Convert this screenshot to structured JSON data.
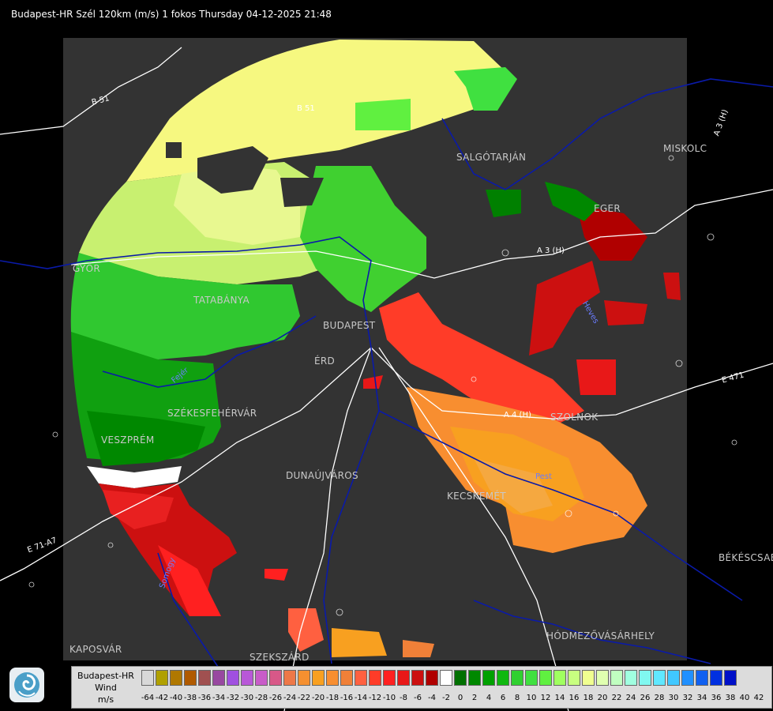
{
  "title": "Budapest-HR Szél 120km (m/s) 1 fokos Thursday 04-12-2025 21:48",
  "cities": [
    {
      "name": "SALGÓTARJÁN",
      "id": "salgotarjan"
    },
    {
      "name": "MISKOLC",
      "id": "miskolc"
    },
    {
      "name": "EGER",
      "id": "eger"
    },
    {
      "name": "TATABÁNYA",
      "id": "tatabanya"
    },
    {
      "name": "BUDAPEST",
      "id": "budapest"
    },
    {
      "name": "ÉRD",
      "id": "erd"
    },
    {
      "name": "SZÉKESFEHÉRVÁR",
      "id": "szekesfehervar"
    },
    {
      "name": "VESZPRÉM",
      "id": "veszprem"
    },
    {
      "name": "DUNAÚJVÁROS",
      "id": "dunaujvaros"
    },
    {
      "name": "KECSKEMÉT",
      "id": "kecskemet"
    },
    {
      "name": "SZOLNOK",
      "id": "szolnok"
    },
    {
      "name": "BÉKÉSCSABA",
      "id": "bekescsaba"
    },
    {
      "name": "HÓDMEZŐVÁSÁRHELY",
      "id": "hodmezovasarhely"
    },
    {
      "name": "KAPOSVÁR",
      "id": "kaposvar"
    },
    {
      "name": "SZEKSZÁRD",
      "id": "szekszard"
    },
    {
      "name": "GYŐR",
      "id": "gyor"
    }
  ],
  "roads": [
    {
      "name": "B 51",
      "id": "b51-west"
    },
    {
      "name": "B 51",
      "id": "b51-north"
    },
    {
      "name": "A 3 (H)",
      "id": "a3-h"
    },
    {
      "name": "A 3 (H)",
      "id": "a3-h-north"
    },
    {
      "name": "A 4 (H)",
      "id": "a4-h"
    },
    {
      "name": "E 471",
      "id": "e471"
    },
    {
      "name": "E 71-A7",
      "id": "e71"
    },
    {
      "name": "Pest",
      "id": "pest"
    },
    {
      "name": "Fejér",
      "id": "fejer"
    },
    {
      "name": "Somogy",
      "id": "somogy"
    },
    {
      "name": "Heves",
      "id": "heves"
    }
  ],
  "legend": {
    "line1": "Budapest-HR",
    "line2": "Wind",
    "line3": "m/s",
    "colors": [
      "#d8d8d8",
      "#b0a000",
      "#b07800",
      "#b05a00",
      "#a05050",
      "#9848a0",
      "#a050e0",
      "#b858d8",
      "#c85cc8",
      "#d85888",
      "#ee7848",
      "#f59030",
      "#f8a020",
      "#f88e30",
      "#f08038",
      "#ff6040",
      "#ff3c28",
      "#ff2020",
      "#e81818",
      "#cc1010",
      "#b00000",
      "#ffffff",
      "#007000",
      "#008800",
      "#00a000",
      "#10b810",
      "#30d030",
      "#40e040",
      "#60f040",
      "#a0ff60",
      "#c8ff80",
      "#f0ff90",
      "#e0ffb0",
      "#c0ffc0",
      "#a0ffe0",
      "#80f8f0",
      "#60e8ff",
      "#40c8ff",
      "#2090ff",
      "#1060f0",
      "#0030e0",
      "#0010c8"
    ],
    "ticks": [
      "-64",
      "-42",
      "-40",
      "-38",
      "-36",
      "-34",
      "-32",
      "-30",
      "-28",
      "-26",
      "-24",
      "-22",
      "-20",
      "-18",
      "-16",
      "-14",
      "-12",
      "-10",
      "-8",
      "-6",
      "-4",
      "-2",
      "0",
      "2",
      "4",
      "6",
      "8",
      "10",
      "12",
      "14",
      "16",
      "18",
      "20",
      "22",
      "24",
      "26",
      "28",
      "30",
      "32",
      "34",
      "36",
      "38",
      "40",
      "42"
    ]
  }
}
